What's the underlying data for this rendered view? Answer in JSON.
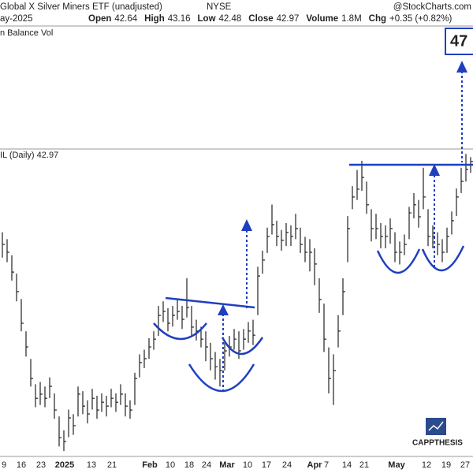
{
  "chart_data": {
    "type": "hlc",
    "title": "Global X Silver Miners ETF (unadjusted)",
    "exchange": "NYSE",
    "source": "@StockCharts.com",
    "date": "ay-2025",
    "quote": [
      {
        "label": "Open",
        "value": "42.64"
      },
      {
        "label": "High",
        "value": "43.16"
      },
      {
        "label": "Low",
        "value": "42.48"
      },
      {
        "label": "Close",
        "value": "42.97"
      },
      {
        "label": "Volume",
        "value": "1.8M"
      },
      {
        "label": "Chg",
        "value": "+0.35 (+0.82%)"
      }
    ],
    "upper_panel_label": "n Balance Vol",
    "price_panel_label": "IL (Daily) 42.97",
    "target_label": "47",
    "logo": "CAPPTHESIS",
    "x_axis_labels": [
      "9",
      "16",
      "23",
      "2025",
      "13",
      "21",
      "Feb",
      "10",
      "18",
      "24",
      "Mar",
      "10",
      "17",
      "24",
      "Apr",
      "7",
      "14",
      "21",
      "May",
      "12",
      "19",
      "27"
    ],
    "color": "#222222",
    "ylim": [
      30.13,
      43.48
    ],
    "high": [
      39.9,
      39.6,
      38.9,
      38.1,
      37.0,
      35.6,
      34.4,
      33.3,
      33.4,
      33.2,
      33.6,
      32.9,
      31.9,
      31.3,
      32.2,
      32.0,
      33.2,
      33.0,
      32.6,
      33.1,
      32.8,
      32.9,
      32.8,
      33.1,
      32.9,
      33.3,
      32.9,
      32.6,
      33.8,
      34.6,
      34.8,
      35.3,
      35.6,
      36.7,
      36.9,
      36.6,
      36.7,
      37.0,
      36.7,
      37.9,
      36.7,
      36.1,
      35.8,
      35.6,
      35.1,
      34.7,
      34.4,
      35.2,
      35.4,
      35.7,
      35.6,
      35.7,
      36.0,
      36.1,
      38.4,
      39.1,
      40.1,
      41.1,
      40.4,
      40.0,
      40.3,
      40.2,
      40.7,
      40.1,
      39.7,
      39.6,
      39.2,
      37.9,
      36.8,
      34.9,
      34.6,
      36.3,
      37.9,
      40.6,
      41.9,
      42.6,
      43.0,
      42.1,
      40.9,
      40.7,
      40.3,
      40.2,
      40.5,
      39.9,
      39.5,
      39.8,
      41.0,
      41.6,
      41.3,
      42.7,
      40.9,
      40.2,
      39.9,
      39.6,
      40.1,
      40.8,
      41.8,
      42.7,
      43.3,
      43.16
    ],
    "low": [
      38.8,
      38.6,
      37.8,
      36.9,
      35.6,
      34.5,
      33.2,
      32.3,
      32.4,
      32.3,
      32.7,
      31.8,
      30.6,
      30.4,
      31.0,
      31.1,
      31.9,
      32.0,
      31.6,
      32.2,
      31.8,
      32.1,
      31.9,
      32.3,
      32.1,
      32.4,
      31.9,
      31.8,
      32.4,
      33.6,
      34.0,
      34.4,
      34.8,
      35.4,
      36.0,
      35.6,
      35.8,
      36.1,
      35.7,
      36.2,
      35.4,
      35.2,
      34.9,
      34.3,
      33.9,
      33.5,
      33.2,
      33.9,
      34.5,
      34.8,
      34.4,
      34.8,
      35.1,
      35.0,
      36.3,
      38.1,
      39.0,
      39.8,
      39.3,
      39.1,
      39.3,
      39.3,
      39.6,
      39.0,
      38.6,
      38.2,
      37.6,
      36.4,
      34.7,
      32.9,
      32.4,
      34.9,
      36.3,
      38.6,
      40.9,
      41.3,
      41.7,
      40.7,
      39.5,
      39.6,
      39.2,
      39.2,
      39.4,
      38.6,
      38.5,
      38.9,
      39.6,
      40.5,
      40.1,
      40.9,
      39.3,
      39.2,
      38.9,
      38.6,
      39.0,
      39.8,
      40.6,
      41.6,
      42.1,
      42.48
    ],
    "close": [
      39.37,
      39.03,
      38.17,
      37.32,
      35.95,
      34.92,
      33.55,
      32.69,
      32.87,
      32.69,
      33.21,
      32.18,
      30.98,
      30.81,
      31.84,
      31.5,
      32.87,
      32.35,
      32.01,
      32.69,
      32.18,
      32.52,
      32.35,
      32.69,
      32.52,
      32.87,
      32.35,
      32.18,
      33.55,
      34.24,
      34.41,
      34.92,
      35.26,
      36.29,
      36.46,
      35.95,
      36.29,
      36.46,
      36.12,
      36.63,
      35.78,
      35.61,
      35.26,
      34.92,
      34.41,
      34.06,
      33.89,
      34.75,
      34.92,
      35.26,
      34.75,
      35.26,
      35.61,
      35.43,
      38.0,
      38.69,
      39.72,
      40.23,
      39.72,
      39.55,
      39.89,
      39.72,
      40.06,
      39.37,
      39.03,
      39.03,
      38.52,
      36.98,
      35.26,
      33.55,
      33.89,
      35.61,
      37.32,
      40.06,
      41.43,
      41.77,
      42.28,
      41.09,
      40.06,
      40.06,
      39.72,
      39.72,
      40.06,
      39.03,
      39.03,
      39.37,
      40.74,
      41.09,
      40.57,
      41.43,
      39.72,
      39.72,
      39.37,
      39.03,
      39.72,
      40.4,
      41.43,
      42.11,
      42.63,
      42.97
    ]
  }
}
